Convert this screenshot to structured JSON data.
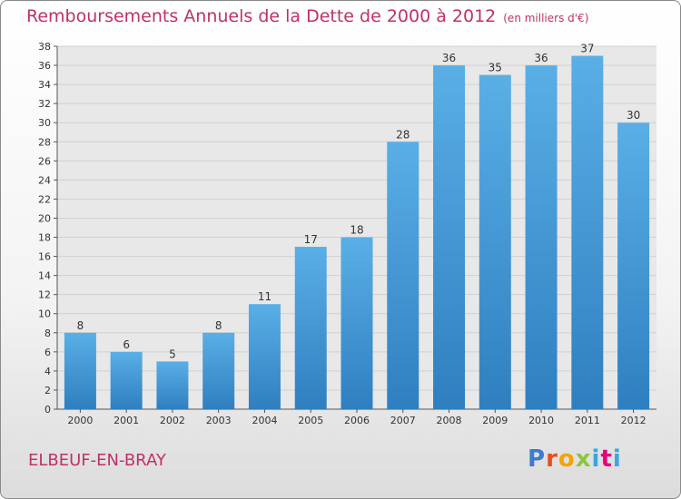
{
  "header": {
    "title": "Remboursements Annuels de la Dette de 2000 à 2012",
    "subtitle": "(en milliers d'€)"
  },
  "footer": {
    "city": "ELBEUF-EN-BRAY",
    "logo_text": "Proxiti"
  },
  "colors": {
    "accent": "#c0306a",
    "bar_top": "#5aafe6",
    "bar_bottom": "#2f7fc0",
    "grid": "#d0d0d0"
  },
  "chart_data": {
    "type": "bar",
    "categories": [
      "2000",
      "2001",
      "2002",
      "2003",
      "2004",
      "2005",
      "2006",
      "2007",
      "2008",
      "2009",
      "2010",
      "2011",
      "2012"
    ],
    "values": [
      8,
      6,
      5,
      8,
      11,
      17,
      18,
      28,
      36,
      35,
      36,
      37,
      30
    ],
    "ylim": [
      0,
      38
    ],
    "ytick_step": 2,
    "grid": true
  }
}
